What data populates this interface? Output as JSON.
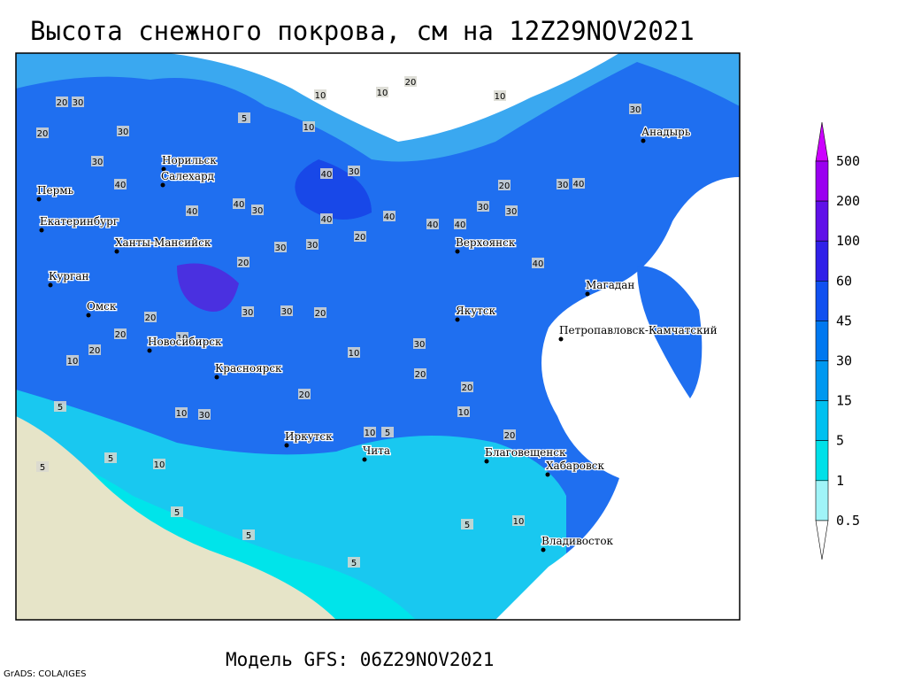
{
  "header": {
    "title": "Высота снежного покрова, см на 12Z29NOV2021"
  },
  "footer": {
    "model": "Модель GFS: 06Z29NOV2021",
    "credit": "GrADS: COLA/IGES"
  },
  "map": {
    "cities": [
      "Анадырь",
      "Норильск",
      "Салехард",
      "Пермь",
      "Екатеринбург",
      "Ханты-Мансийск",
      "Верхоянск",
      "Курган",
      "Магадан",
      "Омск",
      "Якутск",
      "Петропавловск-Камчатский",
      "Новосибирск",
      "Красноярск",
      "Иркутск",
      "Чита",
      "Благовещенск",
      "Хабаровск",
      "Владивосток"
    ],
    "contour_labels": [
      "20",
      "30",
      "10",
      "10",
      "20",
      "10",
      "30",
      "5",
      "10",
      "30",
      "20",
      "30",
      "40",
      "40",
      "30",
      "40",
      "40",
      "30",
      "40",
      "40",
      "40",
      "30",
      "30",
      "20",
      "20",
      "20",
      "30",
      "30",
      "40",
      "20",
      "30",
      "30",
      "20",
      "30",
      "20",
      "10",
      "20",
      "10",
      "20",
      "10",
      "5",
      "5",
      "10",
      "5",
      "5",
      "10",
      "5",
      "10",
      "20",
      "20",
      "5",
      "10",
      "20",
      "5",
      "5",
      "10",
      "30",
      "40",
      "30",
      "40"
    ]
  },
  "legend": {
    "levels": [
      "500",
      "200",
      "100",
      "60",
      "45",
      "30",
      "15",
      "5",
      "1",
      "0.5"
    ],
    "colors": [
      "#cc00ff",
      "#9a00f0",
      "#6010e8",
      "#3020e8",
      "#1050f0",
      "#0078f0",
      "#0098f0",
      "#00c0f0",
      "#00e0e8",
      "#a0f4f8",
      "#ffffff"
    ]
  }
}
